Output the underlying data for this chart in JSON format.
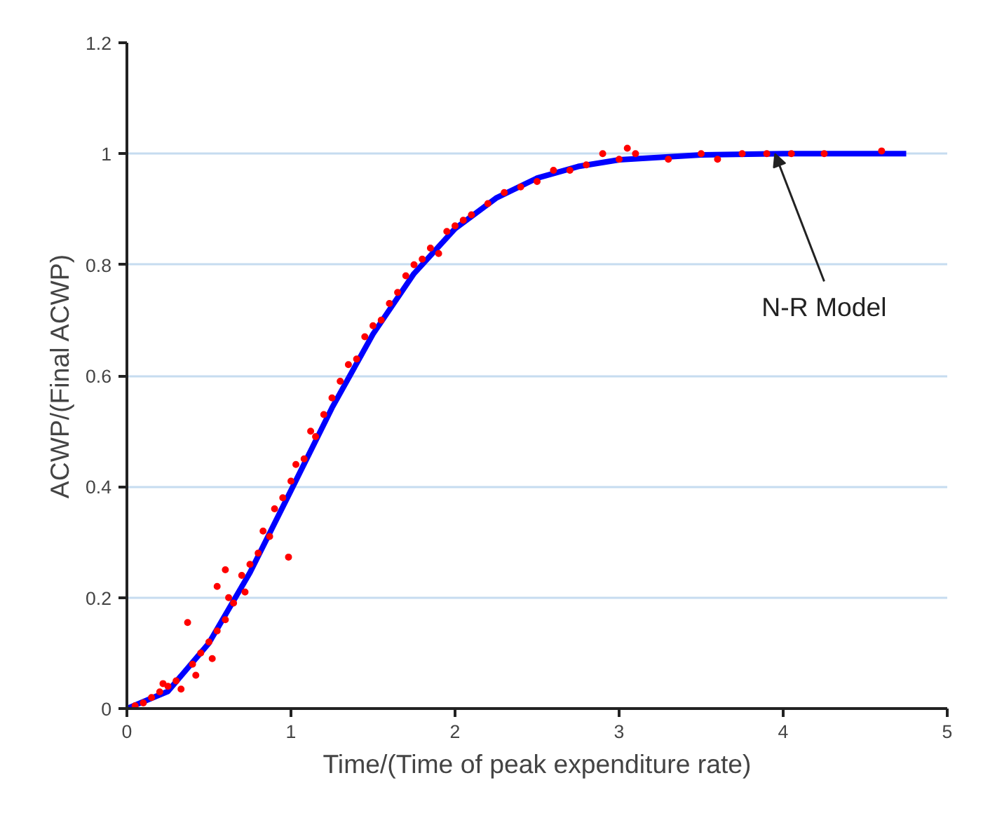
{
  "chart_data": {
    "type": "scatter",
    "xlabel": "Time/(Time of peak expenditure rate)",
    "ylabel": "ACWP/(Final ACWP)",
    "xlim": [
      0,
      5
    ],
    "ylim": [
      0,
      1.2
    ],
    "xticks": [
      0,
      1,
      2,
      3,
      4,
      5
    ],
    "yticks": [
      0,
      0.2,
      0.4,
      0.6,
      0.8,
      1,
      1.2
    ],
    "grid": "y",
    "annotations": [
      {
        "text": "N-R Model",
        "x": 3.95,
        "y": 1.0
      }
    ],
    "series": [
      {
        "marker": "circle",
        "color": "#ff0000",
        "x": [
          0.05,
          0.1,
          0.15,
          0.2,
          0.22,
          0.25,
          0.3,
          0.33,
          0.37,
          0.4,
          0.42,
          0.45,
          0.5,
          0.52,
          0.55,
          0.55,
          0.6,
          0.6,
          0.62,
          0.65,
          0.7,
          0.72,
          0.75,
          0.8,
          0.83,
          0.87,
          0.9,
          0.95,
          0.985,
          1.0,
          1.03,
          1.08,
          1.12,
          1.15,
          1.2,
          1.25,
          1.3,
          1.35,
          1.4,
          1.45,
          1.5,
          1.55,
          1.6,
          1.65,
          1.7,
          1.75,
          1.8,
          1.85,
          1.9,
          1.95,
          2.0,
          2.05,
          2.1,
          2.2,
          2.3,
          2.4,
          2.5,
          2.6,
          2.7,
          2.8,
          2.9,
          3.0,
          3.05,
          3.1,
          3.3,
          3.5,
          3.6,
          3.75,
          3.9,
          4.05,
          4.25,
          4.6
        ],
        "values": [
          0.005,
          0.01,
          0.02,
          0.03,
          0.045,
          0.04,
          0.05,
          0.035,
          0.155,
          0.08,
          0.06,
          0.1,
          0.12,
          0.09,
          0.14,
          0.22,
          0.16,
          0.25,
          0.2,
          0.19,
          0.24,
          0.21,
          0.26,
          0.28,
          0.32,
          0.31,
          0.36,
          0.38,
          0.273,
          0.41,
          0.44,
          0.45,
          0.5,
          0.49,
          0.53,
          0.56,
          0.59,
          0.62,
          0.63,
          0.67,
          0.69,
          0.7,
          0.73,
          0.75,
          0.78,
          0.8,
          0.81,
          0.83,
          0.82,
          0.86,
          0.87,
          0.88,
          0.89,
          0.91,
          0.93,
          0.94,
          0.95,
          0.97,
          0.97,
          0.98,
          1.0,
          0.99,
          1.01,
          1.0,
          0.99,
          1.0,
          0.99,
          1.0,
          1.0,
          1.0,
          1.0,
          1.005
        ]
      },
      {
        "type": "line",
        "color": "#0000ff",
        "x": [
          0,
          0.25,
          0.5,
          0.75,
          1,
          1.25,
          1.5,
          1.75,
          2,
          2.25,
          2.5,
          2.75,
          3,
          3.5,
          4,
          4.75
        ],
        "values": [
          0,
          0.031,
          0.118,
          0.245,
          0.393,
          0.542,
          0.675,
          0.784,
          0.865,
          0.92,
          0.956,
          0.977,
          0.989,
          0.998,
          1.0,
          1.0
        ]
      }
    ]
  }
}
